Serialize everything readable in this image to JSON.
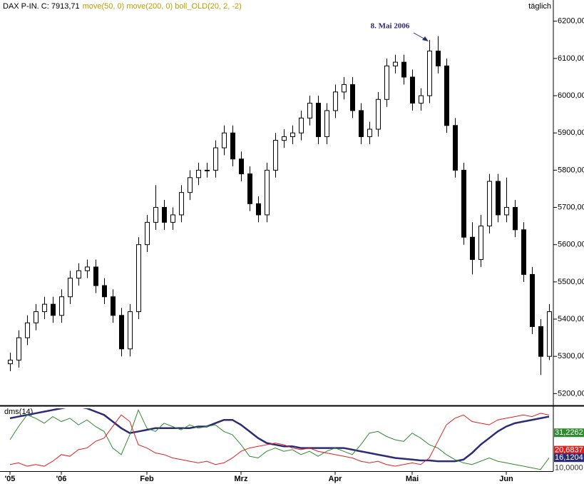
{
  "chart_data": [
    {
      "type": "candlestick",
      "title": "DAX P-IN. C: 7913,71",
      "subtitle": "move(50, 0) move(200, 0) boll_OLD(20, 2, -2)",
      "period": "täglich",
      "annotation": "8. Mai 2006",
      "categories": [
        "'05",
        null,
        null,
        null,
        null,
        null,
        "'06",
        null,
        null,
        null,
        null,
        null,
        null,
        null,
        null,
        null,
        "Feb",
        null,
        null,
        null,
        null,
        null,
        null,
        null,
        null,
        null,
        null,
        "Mrz",
        null,
        null,
        null,
        null,
        null,
        null,
        null,
        null,
        null,
        null,
        "Apr",
        null,
        null,
        null,
        null,
        null,
        null,
        null,
        null,
        "Mai",
        null,
        null,
        null,
        null,
        null,
        null,
        null,
        null,
        null,
        null,
        "Jun",
        null,
        null,
        null,
        null,
        null
      ],
      "open": [
        5280,
        5290,
        5350,
        5390,
        5420,
        5440,
        5410,
        5460,
        5510,
        5530,
        5540,
        5490,
        5460,
        5410,
        5320,
        5420,
        5600,
        5660,
        5700,
        5660,
        5680,
        5740,
        5780,
        5800,
        5800,
        5860,
        5900,
        5830,
        5790,
        5710,
        5680,
        5800,
        5880,
        5890,
        5900,
        5940,
        5980,
        5890,
        5960,
        6010,
        6030,
        5960,
        5890,
        5910,
        5990,
        6080,
        6090,
        6050,
        5980,
        6000,
        6120,
        6080,
        5920,
        5800,
        5620,
        5560,
        5650,
        5770,
        5680,
        5700,
        5640,
        5520,
        5380,
        5300
      ],
      "high": [
        5310,
        5370,
        5410,
        5440,
        5460,
        5460,
        5480,
        5530,
        5550,
        5560,
        5560,
        5510,
        5480,
        5430,
        5440,
        5620,
        5680,
        5760,
        5720,
        5700,
        5760,
        5800,
        5820,
        5820,
        5880,
        5920,
        5920,
        5850,
        5810,
        5730,
        5820,
        5900,
        5910,
        5920,
        5960,
        6000,
        6000,
        5980,
        6030,
        6050,
        6050,
        5980,
        5930,
        6010,
        6100,
        6110,
        6110,
        6070,
        6020,
        6150,
        6160,
        6100,
        5940,
        5820,
        5660,
        5680,
        5790,
        5790,
        5780,
        5720,
        5660,
        5540,
        5400,
        5440
      ],
      "low": [
        5260,
        5270,
        5330,
        5370,
        5400,
        5390,
        5390,
        5440,
        5490,
        5510,
        5470,
        5440,
        5390,
        5300,
        5300,
        5400,
        5580,
        5640,
        5640,
        5640,
        5660,
        5720,
        5760,
        5780,
        5780,
        5840,
        5810,
        5770,
        5690,
        5660,
        5660,
        5780,
        5860,
        5870,
        5880,
        5920,
        5870,
        5870,
        5940,
        5990,
        5940,
        5870,
        5870,
        5890,
        5970,
        6060,
        6030,
        5960,
        5960,
        5980,
        6060,
        5900,
        5780,
        5600,
        5520,
        5540,
        5630,
        5660,
        5660,
        5620,
        5500,
        5360,
        5250,
        5290
      ],
      "close": [
        5290,
        5350,
        5390,
        5420,
        5440,
        5410,
        5460,
        5510,
        5530,
        5540,
        5490,
        5460,
        5410,
        5320,
        5420,
        5600,
        5660,
        5700,
        5660,
        5680,
        5740,
        5780,
        5800,
        5800,
        5860,
        5900,
        5830,
        5790,
        5710,
        5680,
        5800,
        5880,
        5890,
        5900,
        5940,
        5980,
        5890,
        5960,
        6010,
        6030,
        5960,
        5890,
        5910,
        5990,
        6080,
        6090,
        6050,
        5980,
        6000,
        6120,
        6080,
        5920,
        5800,
        5620,
        5560,
        5650,
        5770,
        5680,
        5700,
        5640,
        5520,
        5380,
        5300,
        5420
      ],
      "up_color": "#ffffff",
      "down_color": "#000000",
      "ylim": [
        5170,
        6257
      ],
      "yticks": [
        {
          "value": 5200,
          "label": "5200,00"
        },
        {
          "value": 5300,
          "label": "5300,00"
        },
        {
          "value": 5400,
          "label": "5400,00"
        },
        {
          "value": 5500,
          "label": "5500,00"
        },
        {
          "value": 5600,
          "label": "5600,00"
        },
        {
          "value": 5700,
          "label": "5700,00"
        },
        {
          "value": 5800,
          "label": "5800,00"
        },
        {
          "value": 5900,
          "label": "5900,00"
        },
        {
          "value": 6000,
          "label": "6000,00"
        },
        {
          "value": 6100,
          "label": "6100,00"
        },
        {
          "value": 6200,
          "label": "6200,00"
        }
      ]
    },
    {
      "type": "line",
      "title": "dms(14)",
      "ylim": [
        8,
        46
      ],
      "series": [
        {
          "color": "#2b2b78",
          "values": [
            40,
            41,
            42,
            43,
            44,
            45,
            46,
            47,
            47,
            46,
            44,
            42,
            38,
            34,
            31,
            32,
            33,
            34,
            34,
            34,
            34,
            34,
            35,
            35,
            37,
            39,
            39,
            36,
            32,
            28,
            25,
            24,
            23,
            23,
            22,
            22,
            22,
            22,
            22,
            22,
            21,
            20,
            19,
            18,
            17,
            16,
            15.5,
            15,
            14.5,
            14.5,
            14,
            14,
            14,
            15,
            19,
            24,
            28,
            32,
            35,
            37,
            38,
            39,
            40,
            41
          ]
        },
        {
          "color": "#2e8b2e",
          "values": [
            27,
            35,
            42,
            40,
            37,
            41,
            38,
            40,
            36,
            39,
            35,
            32,
            22,
            18,
            30,
            45,
            34,
            32,
            37,
            35,
            33,
            36,
            34,
            35,
            36,
            32,
            30,
            24,
            17,
            16,
            20,
            22,
            20,
            21,
            18,
            20,
            17,
            20,
            22,
            20,
            18,
            24,
            31,
            32,
            29,
            27,
            26,
            31,
            28,
            24,
            22,
            18,
            15,
            13,
            12,
            14,
            16,
            14,
            13,
            12,
            11,
            10,
            9,
            16
          ]
        },
        {
          "color": "#e02020",
          "values": [
            12,
            13,
            11,
            12,
            11,
            14,
            18,
            17,
            21,
            22,
            26,
            28,
            35,
            42,
            38,
            24,
            22,
            19,
            18,
            16,
            15,
            14,
            13,
            14,
            12,
            13,
            16,
            20,
            22,
            23,
            24,
            25,
            24,
            22,
            21,
            22,
            20,
            19,
            18,
            17,
            16,
            14,
            13,
            14,
            12,
            11,
            12,
            13,
            12,
            16,
            26,
            36,
            40,
            42,
            38,
            37,
            36,
            39,
            40,
            41,
            42,
            41,
            43,
            42
          ]
        }
      ],
      "tags": [
        {
          "value": 31.2262,
          "label": "31,2262",
          "color": "#2e8b2e"
        },
        {
          "value": 20.6837,
          "label": "20,6837",
          "color": "#e02020"
        },
        {
          "value": 16.1204,
          "label": "16,1204",
          "color": "#2b2b78"
        },
        {
          "value": 10,
          "label": "10,0000",
          "color": null
        }
      ]
    }
  ]
}
